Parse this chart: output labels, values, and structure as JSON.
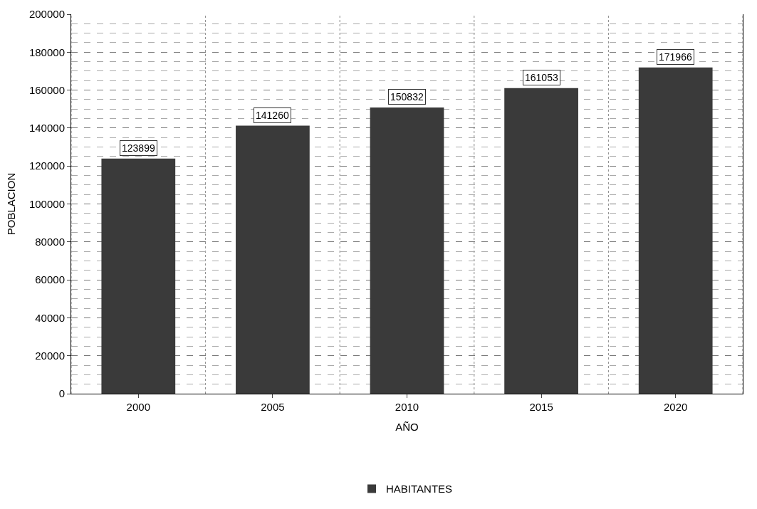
{
  "chart_data": {
    "type": "bar",
    "xlabel": "AÑO",
    "ylabel": "POBLACION",
    "categories": [
      "2000",
      "2005",
      "2010",
      "2015",
      "2020"
    ],
    "series": [
      {
        "name": "HABITANTES",
        "color": "#3a3a3a",
        "values": [
          123899,
          141260,
          150832,
          161053,
          171966
        ]
      }
    ],
    "ylim": [
      0,
      200000
    ],
    "yticks": [
      0,
      20000,
      40000,
      60000,
      80000,
      100000,
      120000,
      140000,
      160000,
      180000,
      200000
    ],
    "grid": true,
    "legend": "bottom",
    "data_labels": true
  }
}
